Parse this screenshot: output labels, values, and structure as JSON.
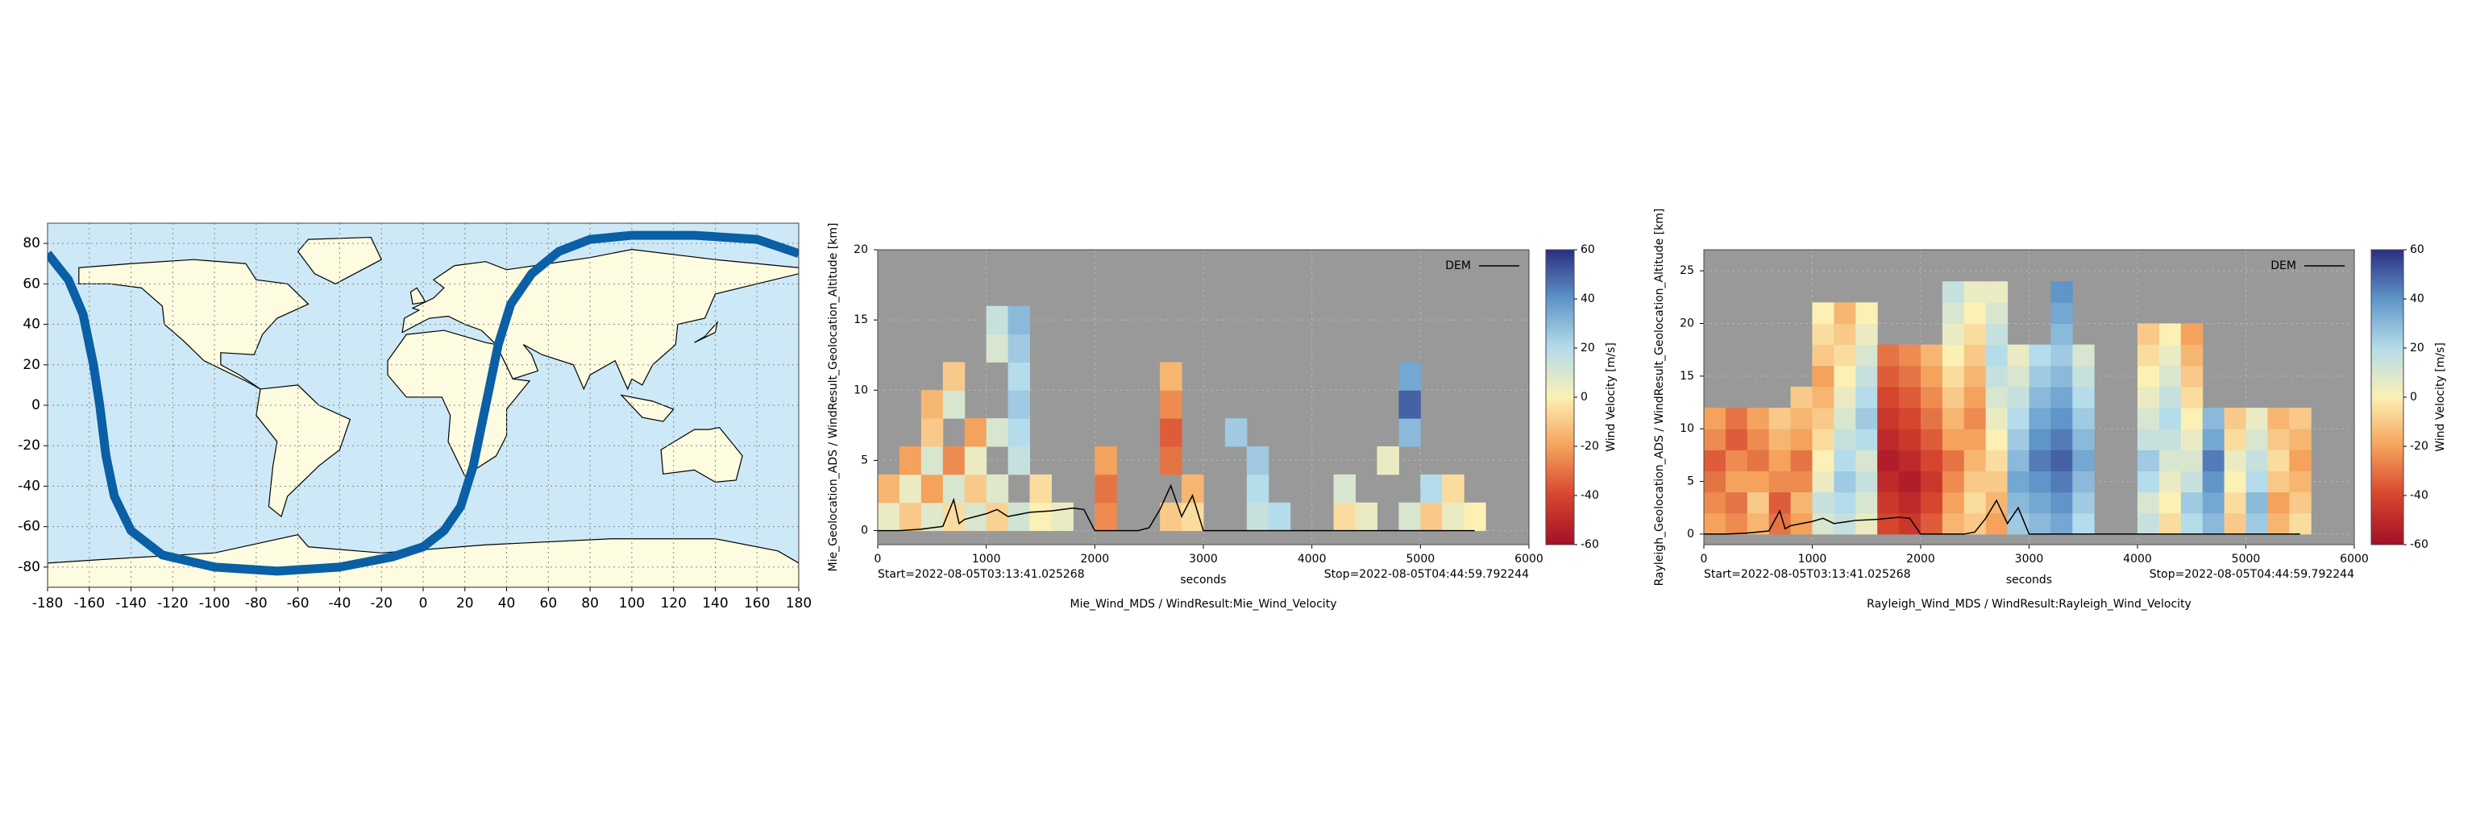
{
  "chart_data": [
    {
      "type": "line",
      "x": [
        -180,
        -170,
        -163,
        -158,
        -155,
        -152,
        -148,
        -140,
        -125,
        -100,
        -70,
        -40,
        -15,
        0,
        10,
        18,
        24,
        28,
        32,
        36,
        42,
        52,
        65,
        80,
        100,
        130,
        160,
        180
      ],
      "values": [
        75,
        62,
        45,
        20,
        0,
        -25,
        -45,
        -62,
        -74,
        -80,
        -82,
        -80,
        -75,
        -70,
        -62,
        -50,
        -30,
        -10,
        10,
        30,
        50,
        65,
        76,
        82,
        84,
        84,
        82,
        75
      ],
      "color": "#0a5fa5",
      "land_color": "#fdfbe0",
      "ocean_color": "#cde9f7",
      "xlim": [
        -180,
        180
      ],
      "xticks": [
        -180,
        -160,
        -140,
        -120,
        -100,
        -80,
        -60,
        -40,
        -20,
        0,
        20,
        40,
        60,
        80,
        100,
        120,
        140,
        160,
        180
      ],
      "ylim": [
        -90,
        90
      ],
      "yticks": [
        -80,
        -60,
        -40,
        -20,
        0,
        20,
        40,
        60,
        80
      ],
      "grid": true
    },
    {
      "type": "heatmap",
      "title": "Mie_Wind_MDS / WindResult:Mie_Wind_Velocity",
      "xlabel": "seconds",
      "ylabel": "Mie_Geolocation_ADS / WindResult_Geolocation_Altitude [km]",
      "start": "Start=2022-08-05T03:13:41.025268",
      "stop": "Stop=2022-08-05T04:44:59.792244",
      "xbins": [
        0,
        200,
        400,
        600,
        800,
        1000,
        1200,
        1400,
        1600,
        1800,
        2000,
        2200,
        2400,
        2600,
        2800,
        3000,
        3200,
        3400,
        3600,
        3800,
        4000,
        4200,
        4400,
        4600,
        4800,
        5000,
        5200,
        5400,
        5600
      ],
      "ybins": [
        0,
        2,
        4,
        6,
        8,
        10,
        12,
        14,
        16,
        18,
        20
      ],
      "z": [
        [
          5,
          -10,
          8,
          -5,
          10,
          -8,
          12,
          0,
          5,
          null,
          -25,
          null,
          null,
          -10,
          -5,
          null,
          null,
          15,
          20,
          null,
          null,
          -5,
          5,
          null,
          10,
          -10,
          5,
          0
        ],
        [
          -15,
          5,
          -20,
          10,
          -10,
          8,
          null,
          -5,
          null,
          null,
          -30,
          null,
          null,
          null,
          -15,
          null,
          null,
          20,
          null,
          null,
          null,
          10,
          null,
          null,
          null,
          20,
          -5,
          null
        ],
        [
          null,
          -20,
          10,
          -25,
          5,
          null,
          15,
          null,
          null,
          null,
          -20,
          null,
          null,
          -30,
          null,
          null,
          null,
          25,
          null,
          null,
          null,
          null,
          null,
          5,
          null,
          null,
          null,
          null
        ],
        [
          null,
          null,
          -10,
          null,
          -20,
          10,
          20,
          null,
          null,
          null,
          null,
          null,
          null,
          -35,
          null,
          null,
          25,
          null,
          null,
          null,
          null,
          null,
          null,
          null,
          30,
          null,
          null,
          null
        ],
        [
          null,
          null,
          -15,
          10,
          null,
          null,
          25,
          null,
          null,
          null,
          null,
          null,
          null,
          -25,
          null,
          null,
          null,
          null,
          null,
          null,
          null,
          null,
          null,
          null,
          50,
          null,
          null,
          null
        ],
        [
          null,
          null,
          null,
          -10,
          null,
          null,
          20,
          null,
          null,
          null,
          null,
          null,
          null,
          -15,
          null,
          null,
          null,
          null,
          null,
          null,
          null,
          null,
          null,
          null,
          35,
          null,
          null,
          null
        ],
        [
          null,
          null,
          null,
          null,
          null,
          10,
          25,
          null,
          null,
          null,
          null,
          null,
          null,
          null,
          null,
          null,
          null,
          null,
          null,
          null,
          null,
          null,
          null,
          null,
          null,
          null,
          null,
          null
        ],
        [
          null,
          null,
          null,
          null,
          null,
          15,
          30,
          null,
          null,
          null,
          null,
          null,
          null,
          null,
          null,
          null,
          null,
          null,
          null,
          null,
          null,
          null,
          null,
          null,
          null,
          null,
          null,
          null
        ],
        [
          null,
          null,
          null,
          null,
          null,
          null,
          null,
          null,
          null,
          null,
          null,
          null,
          null,
          null,
          null,
          null,
          null,
          null,
          null,
          null,
          null,
          null,
          null,
          null,
          null,
          null,
          null,
          null
        ],
        [
          null,
          null,
          null,
          null,
          null,
          null,
          null,
          null,
          null,
          null,
          null,
          null,
          null,
          null,
          null,
          null,
          null,
          null,
          null,
          null,
          null,
          null,
          null,
          null,
          null,
          null,
          null,
          null
        ]
      ],
      "series": [
        {
          "name": "DEM",
          "color": "#000000",
          "x": [
            0,
            200,
            400,
            600,
            700,
            750,
            800,
            900,
            1000,
            1100,
            1200,
            1400,
            1600,
            1800,
            1900,
            2000,
            2400,
            2500,
            2600,
            2700,
            2800,
            2900,
            3000,
            3500,
            4000,
            4500,
            5000,
            5500
          ],
          "values": [
            0,
            0,
            0.1,
            0.3,
            2.2,
            0.5,
            0.8,
            1,
            1.2,
            1.5,
            1,
            1.3,
            1.4,
            1.6,
            1.5,
            0,
            0,
            0.2,
            1.5,
            3.2,
            1,
            2.5,
            0,
            0,
            0,
            0,
            0,
            0
          ]
        }
      ],
      "xlim": [
        0,
        6000
      ],
      "xticks": [
        0,
        1000,
        2000,
        3000,
        4000,
        5000,
        6000
      ],
      "ylim": [
        -1,
        20
      ],
      "yticks": [
        0,
        5,
        10,
        15,
        20
      ],
      "grid": true,
      "background": "#999999",
      "colorbar": {
        "label": "Wind Velocity [m/s]",
        "lim": [
          -60,
          60
        ],
        "ticks": [
          -60,
          -40,
          -20,
          0,
          20,
          40,
          60
        ],
        "colors": [
          "#a50f26",
          "#d6452e",
          "#f4a25c",
          "#fcf0b4",
          "#b4dcea",
          "#5f95c8",
          "#2a2e82"
        ]
      }
    },
    {
      "type": "heatmap",
      "title": "Rayleigh_Wind_MDS / WindResult:Rayleigh_Wind_Velocity",
      "xlabel": "seconds",
      "ylabel": "Rayleigh_Geolocation_ADS / WindResult_Geolocation_Altitude [km]",
      "start": "Start=2022-08-05T03:13:41.025268",
      "stop": "Stop=2022-08-05T04:44:59.792244",
      "xbins": [
        0,
        200,
        400,
        600,
        800,
        1000,
        1200,
        1400,
        1600,
        1800,
        2000,
        2200,
        2400,
        2600,
        2800,
        3000,
        3200,
        3400,
        3600,
        3800,
        4000,
        4200,
        4400,
        4600,
        4800,
        5000,
        5200,
        5400,
        5600
      ],
      "ybins": [
        0,
        2,
        4,
        6,
        8,
        10,
        12,
        14,
        16,
        18,
        20,
        22,
        24
      ],
      "z": [
        [
          -20,
          -25,
          -15,
          -30,
          -20,
          10,
          15,
          5,
          -40,
          -45,
          -35,
          -15,
          -10,
          -20,
          25,
          30,
          35,
          20,
          null,
          null,
          15,
          -5,
          20,
          30,
          -10,
          25,
          -15,
          -5
        ],
        [
          -25,
          -30,
          -10,
          -35,
          -15,
          15,
          20,
          10,
          -45,
          -50,
          -40,
          -20,
          -5,
          -15,
          30,
          35,
          40,
          25,
          null,
          null,
          10,
          0,
          25,
          35,
          -5,
          30,
          -20,
          -10
        ],
        [
          -30,
          -20,
          -20,
          -25,
          -25,
          5,
          25,
          15,
          -50,
          -55,
          -45,
          -25,
          -10,
          -10,
          35,
          40,
          45,
          30,
          null,
          null,
          20,
          5,
          15,
          40,
          0,
          20,
          -10,
          -15
        ],
        [
          -35,
          -25,
          -30,
          -20,
          -30,
          0,
          20,
          10,
          -55,
          -50,
          -40,
          -30,
          -15,
          -5,
          30,
          45,
          50,
          35,
          null,
          null,
          25,
          10,
          10,
          45,
          5,
          15,
          -5,
          -20
        ],
        [
          -25,
          -35,
          -25,
          -15,
          -20,
          -5,
          15,
          20,
          -50,
          -45,
          -35,
          -20,
          -20,
          0,
          25,
          40,
          45,
          30,
          null,
          null,
          15,
          15,
          5,
          35,
          -5,
          10,
          -10,
          -15
        ],
        [
          -20,
          -30,
          -20,
          -10,
          -15,
          -10,
          10,
          25,
          -45,
          -40,
          -30,
          -15,
          -25,
          5,
          20,
          35,
          40,
          25,
          null,
          null,
          10,
          20,
          0,
          30,
          -10,
          5,
          -15,
          -10
        ],
        [
          null,
          null,
          null,
          null,
          -10,
          -15,
          5,
          20,
          -40,
          -35,
          -25,
          -10,
          -20,
          10,
          15,
          30,
          35,
          20,
          null,
          null,
          5,
          15,
          -5,
          null,
          null,
          null,
          null,
          null
        ],
        [
          null,
          null,
          null,
          null,
          null,
          -20,
          0,
          15,
          -35,
          -30,
          -20,
          -5,
          -15,
          15,
          10,
          25,
          30,
          15,
          null,
          null,
          0,
          10,
          -10,
          null,
          null,
          null,
          null,
          null
        ],
        [
          null,
          null,
          null,
          null,
          null,
          -10,
          -5,
          10,
          -30,
          -25,
          -15,
          0,
          -10,
          20,
          5,
          20,
          25,
          10,
          null,
          null,
          -5,
          5,
          -15,
          null,
          null,
          null,
          null,
          null
        ],
        [
          null,
          null,
          null,
          null,
          null,
          -5,
          -10,
          5,
          null,
          null,
          null,
          5,
          -5,
          15,
          null,
          null,
          30,
          null,
          null,
          null,
          -10,
          0,
          -20,
          null,
          null,
          null,
          null,
          null
        ],
        [
          null,
          null,
          null,
          null,
          null,
          0,
          -15,
          0,
          null,
          null,
          null,
          10,
          0,
          10,
          null,
          null,
          35,
          null,
          null,
          null,
          null,
          null,
          null,
          null,
          null,
          null,
          null,
          null
        ],
        [
          null,
          null,
          null,
          null,
          null,
          null,
          null,
          null,
          null,
          null,
          null,
          15,
          5,
          5,
          null,
          null,
          40,
          null,
          null,
          null,
          null,
          null,
          null,
          null,
          null,
          null,
          null,
          null
        ]
      ],
      "series": [
        {
          "name": "DEM",
          "color": "#000000",
          "x": [
            0,
            200,
            400,
            600,
            700,
            750,
            800,
            900,
            1000,
            1100,
            1200,
            1400,
            1600,
            1800,
            1900,
            2000,
            2400,
            2500,
            2600,
            2700,
            2800,
            2900,
            3000,
            3500,
            4000,
            4500,
            5000,
            5500
          ],
          "values": [
            0,
            0,
            0.1,
            0.3,
            2.2,
            0.5,
            0.8,
            1,
            1.2,
            1.5,
            1,
            1.3,
            1.4,
            1.6,
            1.5,
            0,
            0,
            0.2,
            1.5,
            3.2,
            1,
            2.5,
            0,
            0,
            0,
            0,
            0,
            0
          ]
        }
      ],
      "xlim": [
        0,
        6000
      ],
      "xticks": [
        0,
        1000,
        2000,
        3000,
        4000,
        5000,
        6000
      ],
      "ylim": [
        -1,
        27
      ],
      "yticks": [
        0,
        5,
        10,
        15,
        20,
        25
      ],
      "grid": true,
      "background": "#999999",
      "colorbar": {
        "label": "Wind Velocity [m/s]",
        "lim": [
          -60,
          60
        ],
        "ticks": [
          -60,
          -40,
          -20,
          0,
          20,
          40,
          60
        ],
        "colors": [
          "#a50f26",
          "#d6452e",
          "#f4a25c",
          "#fcf0b4",
          "#b4dcea",
          "#5f95c8",
          "#2a2e82"
        ]
      }
    }
  ]
}
